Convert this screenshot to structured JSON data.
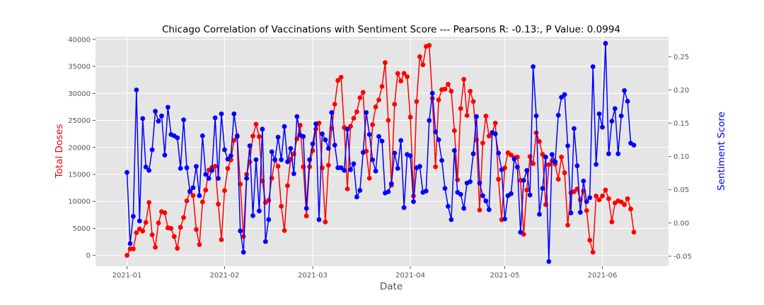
{
  "chart_data": {
    "type": "line",
    "title": "Chicago Correlation of Vaccinations with Sentiment Score --- Pearsons R: -0.13:, P Value: 0.0994",
    "xlabel": "Date",
    "ylabel_left": "Total Doses",
    "ylabel_right": "Sentiment Score",
    "xlim": [
      "2020-12-22",
      "2021-06-22"
    ],
    "ylim_left": [
      -2000,
      40500
    ],
    "ylim_right": [
      -0.065,
      0.28
    ],
    "x_ticks": [
      "2021-01",
      "2021-02",
      "2021-03",
      "2021-04",
      "2021-05",
      "2021-06"
    ],
    "y_ticks_left": [
      0,
      5000,
      10000,
      15000,
      20000,
      25000,
      30000,
      35000,
      40000
    ],
    "y_ticks_right": [
      "-0.05",
      "0.00",
      "0.05",
      "0.10",
      "0.15",
      "0.20",
      "0.25"
    ],
    "grid": true,
    "colors": {
      "doses": "#ff0000",
      "sentiment": "#0000ff",
      "left_label": "#ff0000",
      "right_label": "#0000ff",
      "plot_bg": "#e5e5e5",
      "grid": "#ffffff"
    },
    "start_date": "2021-01-01",
    "series": [
      {
        "axis": "left",
        "values": [
          0,
          1200,
          1200,
          4200,
          4900,
          4500,
          6100,
          9800,
          3800,
          1500,
          6000,
          8100,
          7900,
          5100,
          5000,
          3500,
          1300,
          5200,
          7000,
          10100,
          11900,
          11100,
          4800,
          2000,
          9900,
          12100,
          15800,
          16300,
          16500,
          9500,
          2900,
          12000,
          16100,
          17700,
          21300,
          22200,
          13200,
          3500,
          15000,
          17300,
          22100,
          24300,
          22000,
          13800,
          9800,
          10200,
          14300,
          17700,
          16500,
          9100,
          4600,
          12900,
          17800,
          18800,
          21600,
          24100,
          16400,
          7300,
          16400,
          19400,
          23400,
          24500,
          16200,
          6200,
          16700,
          23500,
          28000,
          32400,
          33000,
          23700,
          12300,
          23900,
          25400,
          26600,
          29200,
          30200,
          19300,
          14300,
          24200,
          27500,
          28800,
          31300,
          35700,
          25000,
          13000,
          28000,
          33700,
          32300,
          33700,
          33100,
          25600,
          11000,
          28500,
          36800,
          35300,
          38700,
          38900,
          29100,
          16400,
          28800,
          30700,
          30800,
          31700,
          30400,
          23100,
          14000,
          27200,
          32600,
          25900,
          30400,
          28500,
          21400,
          8400,
          20800,
          25800,
          22100,
          22700,
          24500,
          14100,
          6600,
          16200,
          19000,
          18600,
          18100,
          18200,
          13900,
          3900,
          12100,
          18300,
          17000,
          22700,
          21100,
          18700,
          9400,
          16800,
          17500,
          16900,
          14100,
          18200,
          15300,
          5600,
          11600,
          11800,
          12300,
          10300,
          11900,
          8300,
          2800,
          600,
          11000,
          10300,
          11000,
          12100,
          10500,
          6200,
          9700,
          10100,
          9900,
          9400,
          10500,
          8600,
          4300
        ]
      },
      {
        "axis": "right",
        "values": [
          0.076,
          -0.031,
          0.01,
          0.2,
          0.003,
          0.157,
          0.084,
          0.079,
          0.11,
          0.168,
          0.153,
          0.161,
          0.102,
          0.174,
          0.133,
          0.131,
          0.128,
          0.082,
          0.155,
          0.083,
          0.047,
          0.053,
          0.085,
          0.041,
          0.131,
          0.073,
          0.067,
          0.079,
          0.158,
          0.067,
          0.164,
          0.11,
          0.096,
          0.101,
          0.164,
          0.13,
          -0.012,
          -0.044,
          0.067,
          0.116,
          0.011,
          0.095,
          0.018,
          0.141,
          -0.028,
          0.005,
          0.107,
          0.095,
          0.129,
          0.095,
          0.145,
          0.092,
          0.112,
          0.074,
          0.16,
          0.132,
          0.13,
          0.022,
          0.095,
          0.119,
          0.149,
          0.005,
          0.134,
          0.125,
          0.112,
          0.166,
          0.117,
          0.083,
          0.083,
          0.079,
          0.141,
          0.08,
          0.089,
          0.039,
          0.049,
          0.106,
          0.166,
          0.133,
          0.095,
          0.078,
          0.13,
          0.123,
          0.045,
          0.047,
          0.059,
          0.105,
          0.082,
          0.124,
          0.023,
          0.103,
          0.101,
          0.032,
          0.083,
          0.085,
          0.046,
          0.048,
          0.154,
          0.195,
          0.137,
          0.125,
          0.094,
          0.052,
          0.025,
          0.005,
          0.109,
          0.046,
          0.043,
          0.022,
          0.06,
          0.062,
          0.104,
          0.16,
          0.06,
          0.041,
          0.033,
          0.02,
          0.136,
          0.134,
          0.105,
          0.08,
          0.006,
          0.041,
          0.044,
          0.096,
          0.084,
          -0.014,
          0.064,
          0.079,
          0.042,
          0.235,
          0.161,
          0.013,
          0.052,
          0.099,
          -0.058,
          0.103,
          0.092,
          0.162,
          0.189,
          0.193,
          0.116,
          0.015,
          0.142,
          0.086,
          0.016,
          0.063,
          0.032,
          0.038,
          0.235,
          0.088,
          0.164,
          0.144,
          0.27,
          0.104,
          0.153,
          0.172,
          0.104,
          0.161,
          0.199,
          0.183,
          0.12,
          0.117
        ]
      }
    ]
  }
}
